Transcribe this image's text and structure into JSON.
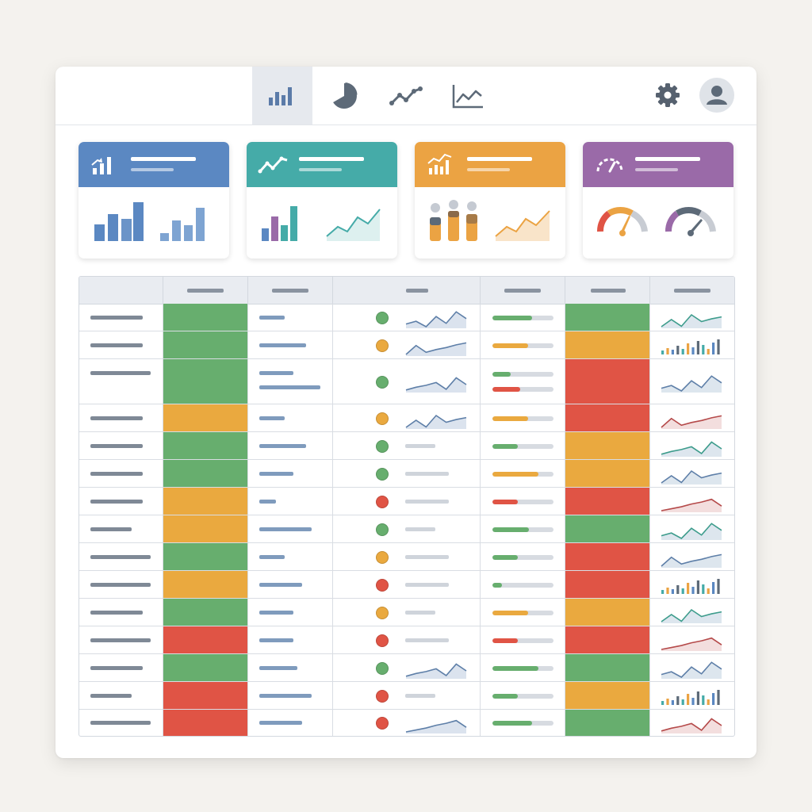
{
  "theme": {
    "green": "#67ae6e",
    "amber": "#eaa93f",
    "red": "#e05445",
    "blue": "#5b88c2",
    "teal": "#45aba8",
    "orange": "#eba343",
    "purple": "#9a6aa8"
  },
  "toolbar": {
    "tabs": [
      {
        "icon": "bar-chart-icon",
        "active": true
      },
      {
        "icon": "pie-chart-icon",
        "active": false
      },
      {
        "icon": "line-chart-icon",
        "active": false
      },
      {
        "icon": "area-chart-icon",
        "active": false
      }
    ],
    "settings_icon": "gear-icon",
    "user_icon": "user-avatar-icon"
  },
  "cards": [
    {
      "name": "bar-summary",
      "icon": "bar-growth-icon",
      "color": "#5b88c2"
    },
    {
      "name": "trend-summary",
      "icon": "trend-line-icon",
      "color": "#45aba8"
    },
    {
      "name": "distribution-summary",
      "icon": "bar-trend-icon",
      "color": "#eba343"
    },
    {
      "name": "gauge-summary",
      "icon": "speedometer-icon",
      "color": "#9a6aa8"
    }
  ],
  "table": {
    "rows": [
      {
        "c2": "green",
        "c3": [
          0.3
        ],
        "dot": "green",
        "spark4": "line",
        "prog": [
          {
            "color": "green",
            "value": 0.65
          }
        ],
        "c6": "green",
        "spark7": "green"
      },
      {
        "c2": "green",
        "c3": [
          0.55
        ],
        "dot": "amber",
        "spark4": "line",
        "prog": [
          {
            "color": "amber",
            "value": 0.58
          }
        ],
        "c6": "amber",
        "spark7": "bars"
      },
      {
        "c2": "green",
        "c3": [
          0.4,
          0.72
        ],
        "dot": "green",
        "spark4": "line",
        "prog": [
          {
            "color": "green",
            "value": 0.3
          },
          {
            "color": "red",
            "value": 0.45
          }
        ],
        "c6": "red",
        "spark7": "gray"
      },
      {
        "c2": "amber",
        "c3": [
          0.3
        ],
        "dot": "amber",
        "spark4": "line",
        "prog": [
          {
            "color": "amber",
            "value": 0.58
          }
        ],
        "c6": "red",
        "spark7": "red"
      },
      {
        "c2": "green",
        "c3": [
          0.55
        ],
        "dot": "green",
        "spark4": "bar",
        "prog": [
          {
            "color": "green",
            "value": 0.42
          }
        ],
        "c6": "amber",
        "spark7": "green"
      },
      {
        "c2": "green",
        "c3": [
          0.4
        ],
        "dot": "green",
        "spark4": "bar",
        "prog": [
          {
            "color": "amber",
            "value": 0.75
          }
        ],
        "c6": "amber",
        "spark7": "gray"
      },
      {
        "c2": "amber",
        "c3": [
          0.2
        ],
        "dot": "red",
        "spark4": "bar",
        "prog": [
          {
            "color": "red",
            "value": 0.42
          }
        ],
        "c6": "red",
        "spark7": "red"
      },
      {
        "c2": "amber",
        "c3": [
          0.62
        ],
        "dot": "green",
        "spark4": "bar",
        "prog": [
          {
            "color": "green",
            "value": 0.6
          }
        ],
        "c6": "green",
        "spark7": "green"
      },
      {
        "c2": "green",
        "c3": [
          0.3
        ],
        "dot": "amber",
        "spark4": "bar",
        "prog": [
          {
            "color": "green",
            "value": 0.42
          }
        ],
        "c6": "red",
        "spark7": "gray"
      },
      {
        "c2": "amber",
        "c3": [
          0.5
        ],
        "dot": "red",
        "spark4": "bar",
        "prog": [
          {
            "color": "green",
            "value": 0.15
          }
        ],
        "c6": "red",
        "spark7": "bars"
      },
      {
        "c2": "green",
        "c3": [
          0.4
        ],
        "dot": "amber",
        "spark4": "bar",
        "prog": [
          {
            "color": "amber",
            "value": 0.58
          }
        ],
        "c6": "amber",
        "spark7": "green"
      },
      {
        "c2": "red",
        "c3": [
          0.4
        ],
        "dot": "red",
        "spark4": "bar",
        "prog": [
          {
            "color": "red",
            "value": 0.42
          }
        ],
        "c6": "red",
        "spark7": "red"
      },
      {
        "c2": "green",
        "c3": [
          0.45
        ],
        "dot": "green",
        "spark4": "line",
        "prog": [
          {
            "color": "green",
            "value": 0.75
          }
        ],
        "c6": "green",
        "spark7": "gray"
      },
      {
        "c2": "red",
        "c3": [
          0.62
        ],
        "dot": "red",
        "spark4": "bar",
        "prog": [
          {
            "color": "green",
            "value": 0.42
          }
        ],
        "c6": "amber",
        "spark7": "bars"
      },
      {
        "c2": "red",
        "c3": [
          0.5
        ],
        "dot": "red",
        "spark4": "line",
        "prog": [
          {
            "color": "green",
            "value": 0.65
          }
        ],
        "c6": "green",
        "spark7": "red"
      }
    ]
  }
}
